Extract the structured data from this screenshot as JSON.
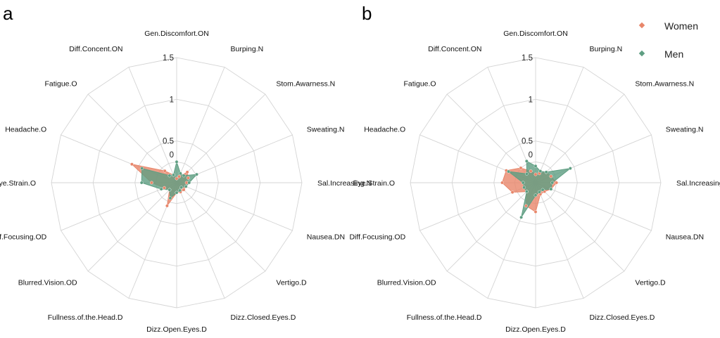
{
  "panels": [
    "a",
    "b"
  ],
  "legend": {
    "entries": [
      "Women",
      "Men"
    ]
  },
  "colors": {
    "Women": "#E8866A",
    "Men": "#5E9E82",
    "overlap": "#A6714F",
    "grid": "#d4d4d4"
  },
  "chart_data": [
    {
      "type": "radar",
      "panel": "a",
      "axes": [
        "Gen.Discomfort.ON",
        "Burping.N",
        "Stom.Awarness.N",
        "Sweating.N",
        "Sal.Increasing.N",
        "Nausea.DN",
        "Vertigo.D",
        "Dizz.Closed.Eyes.D",
        "Dizz.Open.Eyes.D",
        "Fullness.of.the.Head.D",
        "Blurred.Vision.OD",
        "Diff.Focusing.OD",
        "Eye.Strain.O",
        "Headache.O",
        "Fatigue.O",
        "Diff.Concent.ON"
      ],
      "rlim": [
        0,
        1.5
      ],
      "ticks": [
        "0",
        "0.5",
        "1",
        "1.5"
      ],
      "series": [
        {
          "name": "Women",
          "values": [
            0.05,
            0.08,
            0.18,
            0.15,
            0.12,
            0.12,
            0.12,
            0.12,
            0.12,
            0.3,
            0.12,
            0.16,
            0.3,
            0.58,
            0.2,
            0.1
          ]
        },
        {
          "name": "Men",
          "values": [
            0.25,
            0.12,
            0.12,
            0.26,
            0.15,
            0.12,
            0.08,
            0.1,
            0.12,
            0.2,
            0.12,
            0.2,
            0.42,
            0.45,
            0.12,
            0.1
          ]
        }
      ]
    },
    {
      "type": "radar",
      "panel": "b",
      "axes": [
        "Gen.Discomfort.ON",
        "Burping.N",
        "Stom.Awarness.N",
        "Sweating.N",
        "Sal.Increasing.N",
        "Nausea.DN",
        "Vertigo.D",
        "Dizz.Closed.Eyes.D",
        "Dizz.Open.Eyes.D",
        "Fullness.of.the.Head.D",
        "Blurred.Vision.OD",
        "Diff.Focusing.OD",
        "Eye.Strain.O",
        "Headache.O",
        "Fatigue.O",
        "Diff.Concent.ON"
      ],
      "rlim": [
        0,
        1.5
      ],
      "ticks": [
        "0",
        "0.5",
        "1",
        "1.5"
      ],
      "series": [
        {
          "name": "Women",
          "values": [
            0.1,
            0.12,
            0.18,
            0.2,
            0.25,
            0.2,
            0.15,
            0.15,
            0.35,
            0.3,
            0.15,
            0.3,
            0.4,
            0.38,
            0.25,
            0.15
          ]
        },
        {
          "name": "Men",
          "values": [
            0.2,
            0.15,
            0.18,
            0.45,
            0.2,
            0.2,
            0.12,
            0.12,
            0.15,
            0.45,
            0.15,
            0.15,
            0.15,
            0.35,
            0.15,
            0.28
          ]
        }
      ]
    }
  ]
}
